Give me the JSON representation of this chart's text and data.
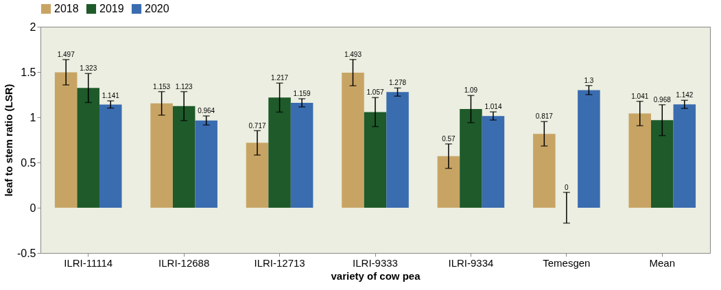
{
  "chart_data": {
    "type": "bar",
    "xlabel": "variety of cow pea",
    "ylabel": "leaf to stem ratio (LSR)",
    "categories": [
      "ILRI-11114",
      "ILRI-12688",
      "ILRI-12713",
      "ILRI-9333",
      "ILRI-9334",
      "Temesgen",
      "Mean"
    ],
    "series": [
      {
        "name": "2018",
        "color": "#c8a464",
        "values": [
          1.497,
          1.153,
          0.717,
          1.493,
          0.57,
          0.817,
          1.041
        ],
        "errors": [
          0.14,
          0.13,
          0.135,
          0.145,
          0.135,
          0.135,
          0.135
        ]
      },
      {
        "name": "2019",
        "color": "#1e5a2a",
        "values": [
          1.323,
          1.123,
          1.217,
          1.057,
          1.09,
          0,
          0.968
        ],
        "errors": [
          0.16,
          0.16,
          0.16,
          0.16,
          0.15,
          0.17,
          0.17
        ]
      },
      {
        "name": "2020",
        "color": "#3a6cb0",
        "values": [
          1.141,
          0.964,
          1.159,
          1.278,
          1.014,
          1.3,
          1.142
        ],
        "errors": [
          0.04,
          0.05,
          0.045,
          0.045,
          0.045,
          0.05,
          0.045
        ]
      }
    ],
    "ylim": [
      -0.5,
      2
    ],
    "yticks": [
      -0.5,
      0,
      0.5,
      1,
      1.5,
      2
    ],
    "data_labels": true,
    "grid": false,
    "legend": "top"
  }
}
